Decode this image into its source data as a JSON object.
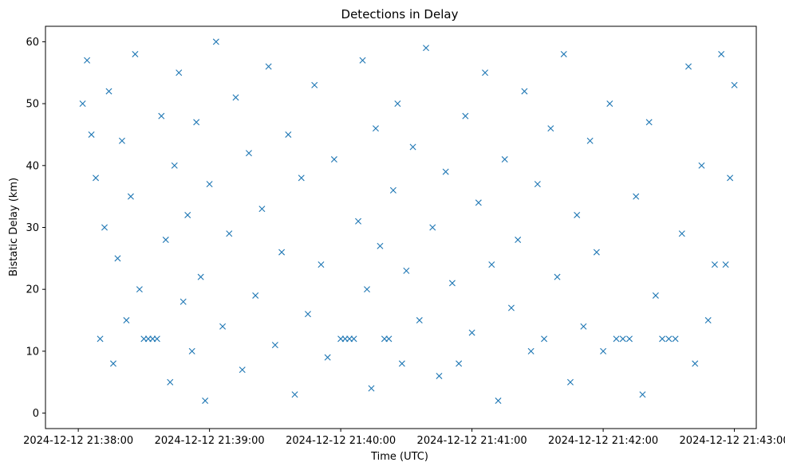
{
  "chart_data": {
    "type": "scatter",
    "title": "Detections in Delay",
    "xlabel": "Time (UTC)",
    "ylabel": "Bistatic Delay (km)",
    "x_ticks": [
      "2024-12-12 21:38:00",
      "2024-12-12 21:39:00",
      "2024-12-12 21:40:00",
      "2024-12-12 21:41:00",
      "2024-12-12 21:42:00",
      "2024-12-12 21:43:00"
    ],
    "y_ticks": [
      0,
      10,
      20,
      30,
      40,
      50,
      60
    ],
    "xlim": [
      "2024-12-12 21:37:45",
      "2024-12-12 21:43:10"
    ],
    "ylim": [
      -2.5,
      62.5
    ],
    "grid": false,
    "marker": "x",
    "marker_color": "#1f77b4",
    "series": [
      {
        "points": [
          [
            "2024-12-12 21:38:02",
            50
          ],
          [
            "2024-12-12 21:38:04",
            57
          ],
          [
            "2024-12-12 21:38:06",
            45
          ],
          [
            "2024-12-12 21:38:08",
            38
          ],
          [
            "2024-12-12 21:38:10",
            12
          ],
          [
            "2024-12-12 21:38:12",
            30
          ],
          [
            "2024-12-12 21:38:14",
            52
          ],
          [
            "2024-12-12 21:38:16",
            8
          ],
          [
            "2024-12-12 21:38:18",
            25
          ],
          [
            "2024-12-12 21:38:20",
            44
          ],
          [
            "2024-12-12 21:38:22",
            15
          ],
          [
            "2024-12-12 21:38:24",
            35
          ],
          [
            "2024-12-12 21:38:26",
            58
          ],
          [
            "2024-12-12 21:38:28",
            20
          ],
          [
            "2024-12-12 21:38:30",
            12
          ],
          [
            "2024-12-12 21:38:32",
            12
          ],
          [
            "2024-12-12 21:38:34",
            12
          ],
          [
            "2024-12-12 21:38:36",
            12
          ],
          [
            "2024-12-12 21:38:38",
            48
          ],
          [
            "2024-12-12 21:38:40",
            28
          ],
          [
            "2024-12-12 21:38:42",
            5
          ],
          [
            "2024-12-12 21:38:44",
            40
          ],
          [
            "2024-12-12 21:38:46",
            55
          ],
          [
            "2024-12-12 21:38:48",
            18
          ],
          [
            "2024-12-12 21:38:50",
            32
          ],
          [
            "2024-12-12 21:38:52",
            10
          ],
          [
            "2024-12-12 21:38:54",
            47
          ],
          [
            "2024-12-12 21:38:56",
            22
          ],
          [
            "2024-12-12 21:38:58",
            2
          ],
          [
            "2024-12-12 21:39:00",
            37
          ],
          [
            "2024-12-12 21:39:03",
            60
          ],
          [
            "2024-12-12 21:39:06",
            14
          ],
          [
            "2024-12-12 21:39:09",
            29
          ],
          [
            "2024-12-12 21:39:12",
            51
          ],
          [
            "2024-12-12 21:39:15",
            7
          ],
          [
            "2024-12-12 21:39:18",
            42
          ],
          [
            "2024-12-12 21:39:21",
            19
          ],
          [
            "2024-12-12 21:39:24",
            33
          ],
          [
            "2024-12-12 21:39:27",
            56
          ],
          [
            "2024-12-12 21:39:30",
            11
          ],
          [
            "2024-12-12 21:39:33",
            26
          ],
          [
            "2024-12-12 21:39:36",
            45
          ],
          [
            "2024-12-12 21:39:39",
            3
          ],
          [
            "2024-12-12 21:39:42",
            38
          ],
          [
            "2024-12-12 21:39:45",
            16
          ],
          [
            "2024-12-12 21:39:48",
            53
          ],
          [
            "2024-12-12 21:39:51",
            24
          ],
          [
            "2024-12-12 21:39:54",
            9
          ],
          [
            "2024-12-12 21:39:57",
            41
          ],
          [
            "2024-12-12 21:40:00",
            12
          ],
          [
            "2024-12-12 21:40:02",
            12
          ],
          [
            "2024-12-12 21:40:04",
            12
          ],
          [
            "2024-12-12 21:40:06",
            12
          ],
          [
            "2024-12-12 21:40:08",
            31
          ],
          [
            "2024-12-12 21:40:10",
            57
          ],
          [
            "2024-12-12 21:40:12",
            20
          ],
          [
            "2024-12-12 21:40:14",
            4
          ],
          [
            "2024-12-12 21:40:16",
            46
          ],
          [
            "2024-12-12 21:40:18",
            27
          ],
          [
            "2024-12-12 21:40:20",
            12
          ],
          [
            "2024-12-12 21:40:22",
            12
          ],
          [
            "2024-12-12 21:40:24",
            36
          ],
          [
            "2024-12-12 21:40:26",
            50
          ],
          [
            "2024-12-12 21:40:28",
            8
          ],
          [
            "2024-12-12 21:40:30",
            23
          ],
          [
            "2024-12-12 21:40:33",
            43
          ],
          [
            "2024-12-12 21:40:36",
            15
          ],
          [
            "2024-12-12 21:40:39",
            59
          ],
          [
            "2024-12-12 21:40:42",
            30
          ],
          [
            "2024-12-12 21:40:45",
            6
          ],
          [
            "2024-12-12 21:40:48",
            39
          ],
          [
            "2024-12-12 21:40:51",
            21
          ],
          [
            "2024-12-12 21:40:54",
            8
          ],
          [
            "2024-12-12 21:40:57",
            48
          ],
          [
            "2024-12-12 21:41:00",
            13
          ],
          [
            "2024-12-12 21:41:03",
            34
          ],
          [
            "2024-12-12 21:41:06",
            55
          ],
          [
            "2024-12-12 21:41:09",
            24
          ],
          [
            "2024-12-12 21:41:12",
            2
          ],
          [
            "2024-12-12 21:41:15",
            41
          ],
          [
            "2024-12-12 21:41:18",
            17
          ],
          [
            "2024-12-12 21:41:21",
            28
          ],
          [
            "2024-12-12 21:41:24",
            52
          ],
          [
            "2024-12-12 21:41:27",
            10
          ],
          [
            "2024-12-12 21:41:30",
            37
          ],
          [
            "2024-12-12 21:41:33",
            12
          ],
          [
            "2024-12-12 21:41:36",
            46
          ],
          [
            "2024-12-12 21:41:39",
            22
          ],
          [
            "2024-12-12 21:41:42",
            58
          ],
          [
            "2024-12-12 21:41:45",
            5
          ],
          [
            "2024-12-12 21:41:48",
            32
          ],
          [
            "2024-12-12 21:41:51",
            14
          ],
          [
            "2024-12-12 21:41:54",
            44
          ],
          [
            "2024-12-12 21:41:57",
            26
          ],
          [
            "2024-12-12 21:42:00",
            10
          ],
          [
            "2024-12-12 21:42:03",
            50
          ],
          [
            "2024-12-12 21:42:06",
            12
          ],
          [
            "2024-12-12 21:42:09",
            12
          ],
          [
            "2024-12-12 21:42:12",
            12
          ],
          [
            "2024-12-12 21:42:15",
            35
          ],
          [
            "2024-12-12 21:42:18",
            3
          ],
          [
            "2024-12-12 21:42:21",
            47
          ],
          [
            "2024-12-12 21:42:24",
            19
          ],
          [
            "2024-12-12 21:42:27",
            12
          ],
          [
            "2024-12-12 21:42:30",
            12
          ],
          [
            "2024-12-12 21:42:33",
            12
          ],
          [
            "2024-12-12 21:42:36",
            29
          ],
          [
            "2024-12-12 21:42:39",
            56
          ],
          [
            "2024-12-12 21:42:42",
            8
          ],
          [
            "2024-12-12 21:42:45",
            40
          ],
          [
            "2024-12-12 21:42:48",
            15
          ],
          [
            "2024-12-12 21:42:51",
            24
          ],
          [
            "2024-12-12 21:42:54",
            58
          ],
          [
            "2024-12-12 21:42:56",
            24
          ],
          [
            "2024-12-12 21:42:58",
            38
          ],
          [
            "2024-12-12 21:43:00",
            53
          ]
        ]
      }
    ]
  }
}
